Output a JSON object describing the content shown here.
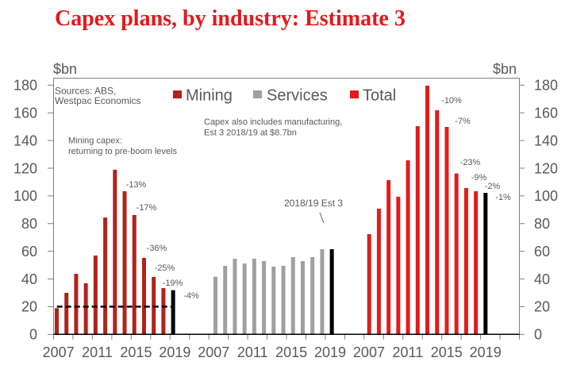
{
  "chart_data": {
    "type": "bar",
    "title": "Capex plans, by industry: Estimate 3",
    "xlabel": "",
    "ylabel": "$bn",
    "y_unit_left": "$bn",
    "y_unit_right": "$bn",
    "ylim": [
      0,
      180
    ],
    "yticks": [
      0,
      20,
      40,
      60,
      80,
      100,
      120,
      140,
      160,
      180
    ],
    "ytick_labels": [
      "0",
      "20",
      "40",
      "60",
      "80",
      "100",
      "120",
      "140",
      "160",
      "180"
    ],
    "grid": false,
    "categories": [
      "2007",
      "2008",
      "2009",
      "2010",
      "2011",
      "2012",
      "2013",
      "2014",
      "2015",
      "2016",
      "2017",
      "2018",
      "2019"
    ],
    "xtick_labels": [
      "2007",
      "2011",
      "2015",
      "2019",
      "2007",
      "2011",
      "2015",
      "2019",
      "2007",
      "2011",
      "2015",
      "2019"
    ],
    "legend": {
      "position": "top-center",
      "entries": [
        "Mining",
        "Services",
        "Total"
      ]
    },
    "series": [
      {
        "name": "Mining",
        "color": "#B0231A",
        "values": [
          18.9,
          30.0,
          43.7,
          36.9,
          56.9,
          84.4,
          118.9,
          103.4,
          86.2,
          55.2,
          41.5,
          33.4,
          31.9
        ],
        "change_labels": [
          {
            "category": "2014",
            "text": "-13%"
          },
          {
            "category": "2015",
            "text": "-17%"
          },
          {
            "category": "2016",
            "text": "-36%"
          },
          {
            "category": "2017",
            "text": "-25%"
          },
          {
            "category": "2018",
            "text": "-19%"
          },
          {
            "category": "2019",
            "text": "-4%"
          }
        ]
      },
      {
        "name": "Services",
        "color": "#A0A0A0",
        "values": [
          41.6,
          49.5,
          54.6,
          51.2,
          54.6,
          52.9,
          48.9,
          49.5,
          55.8,
          52.9,
          55.8,
          61.5,
          61.5
        ],
        "change_labels": []
      },
      {
        "name": "Total",
        "color": "#E31B1B",
        "values": [
          72.4,
          90.8,
          111.4,
          99.4,
          125.7,
          150.4,
          179.6,
          161.9,
          149.8,
          116.2,
          105.7,
          103.4,
          102.2
        ],
        "change_labels": [
          {
            "category": "2014",
            "text": "-10%"
          },
          {
            "category": "2015",
            "text": "-7%"
          },
          {
            "category": "2016",
            "text": "-23%"
          },
          {
            "category": "2017",
            "text": "-9%"
          },
          {
            "category": "2018",
            "text": "-2%"
          },
          {
            "category": "2019",
            "text": "-1%"
          }
        ]
      }
    ],
    "highlight": {
      "category": "2019",
      "color": "#000000",
      "label": "2018/19 Est 3"
    },
    "reference_line": {
      "series": "Mining",
      "value": 20,
      "style": "dashed",
      "color": "#000000"
    },
    "annotations": {
      "sources": [
        "Sources: ABS,",
        "Westpac Economics"
      ],
      "mining_note": [
        "Mining capex:",
        "returning to pre-boom levels"
      ],
      "manufacturing_note": [
        "Capex also includes manufacturing,",
        "Est 3 2018/19 at $8.7bn"
      ],
      "estimate_label": "2018/19 Est 3"
    }
  }
}
